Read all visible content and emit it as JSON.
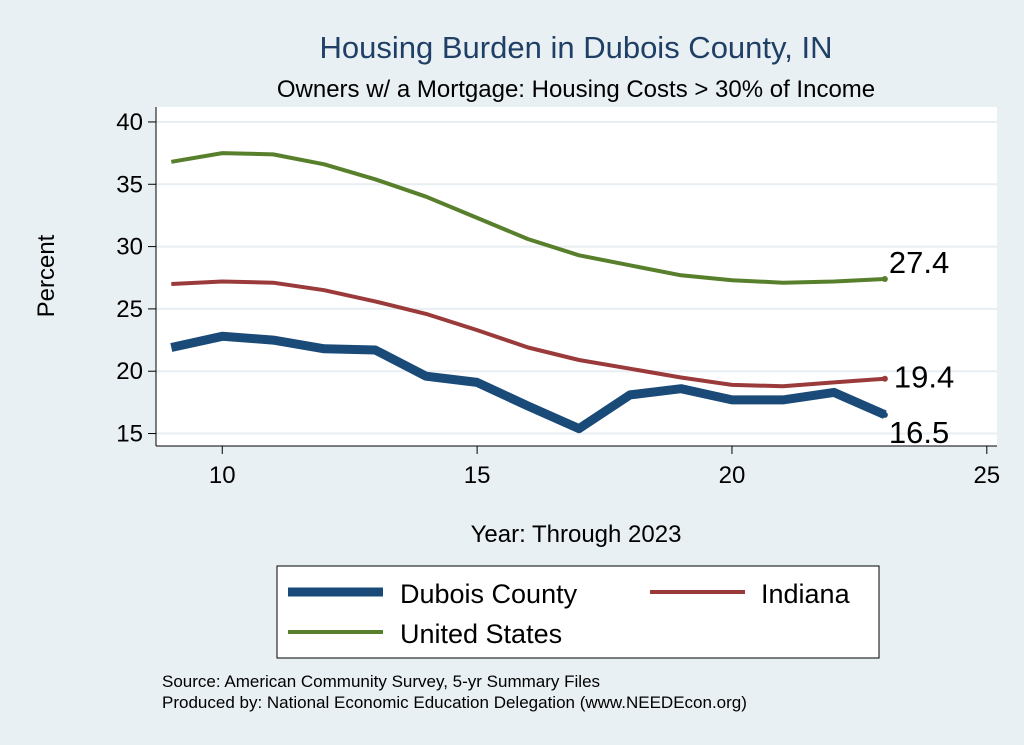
{
  "chart_data": {
    "type": "line",
    "title": "Housing Burden in Dubois County, IN",
    "subtitle": "Owners w/ a Mortgage: Housing Costs > 30% of Income",
    "xlabel": "Year: Through 2023",
    "ylabel": "Percent",
    "xlim": [
      8.7,
      25.2
    ],
    "ylim": [
      14.0,
      41.2
    ],
    "xticks": [
      10,
      15,
      20,
      25
    ],
    "yticks": [
      15,
      20,
      25,
      30,
      35,
      40
    ],
    "grid": true,
    "x": [
      9,
      10,
      11,
      12,
      13,
      14,
      15,
      16,
      17,
      18,
      19,
      20,
      21,
      22,
      23
    ],
    "series": [
      {
        "name": "Dubois County",
        "color": "#1a4a78",
        "values": [
          21.9,
          22.8,
          22.5,
          21.8,
          21.7,
          19.6,
          19.1,
          17.2,
          15.4,
          18.1,
          18.6,
          17.7,
          17.7,
          18.3,
          16.5
        ],
        "end_label": "16.5"
      },
      {
        "name": "Indiana",
        "color": "#9b3a3a",
        "values": [
          27.0,
          27.2,
          27.1,
          26.5,
          25.6,
          24.6,
          23.3,
          21.9,
          20.9,
          20.2,
          19.5,
          18.9,
          18.8,
          19.1,
          19.4
        ],
        "end_label": "19.4"
      },
      {
        "name": "United States",
        "color": "#587f2c",
        "values": [
          36.8,
          37.5,
          37.4,
          36.6,
          35.4,
          34.0,
          32.3,
          30.6,
          29.3,
          28.5,
          27.7,
          27.3,
          27.1,
          27.2,
          27.4
        ],
        "end_label": "27.4"
      }
    ],
    "legend_position": "bottom",
    "source_line_1": "Source: American Community Survey, 5-yr Summary Files",
    "source_line_2": "Produced by: National Economic Education Delegation (www.NEEDEcon.org)"
  }
}
